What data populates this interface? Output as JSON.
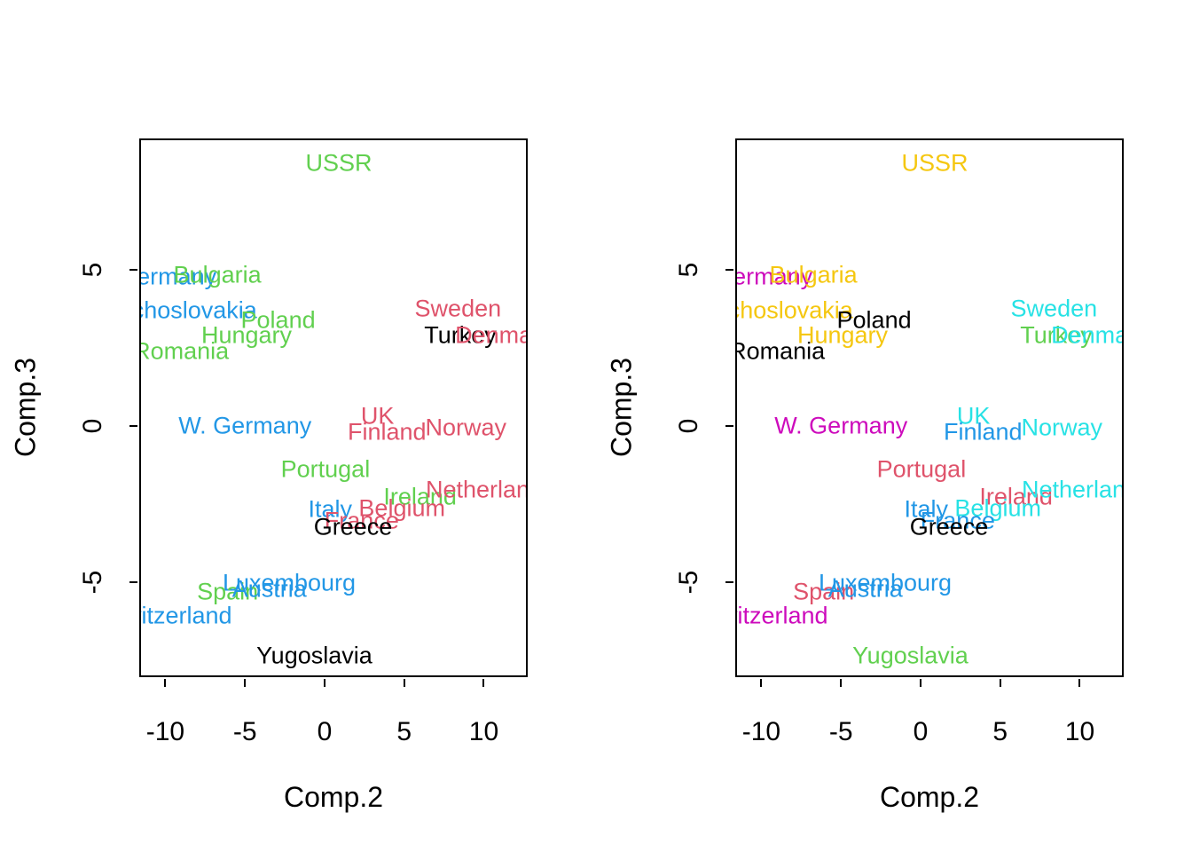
{
  "figure": {
    "background": "#ffffff",
    "palette": {
      "black": "#000000",
      "red": "#DF536B",
      "green": "#61D04F",
      "blue": "#2297E6",
      "cyan": "#28E2E5",
      "magenta": "#CD0BBC",
      "yellow": "#F5C710"
    }
  },
  "chart_data": [
    {
      "type": "scatter",
      "panel": "left",
      "xlabel": "Comp.2",
      "ylabel": "Comp.3",
      "xlim": [
        -11.64,
        12.76
      ],
      "ylim": [
        -8.02,
        9.18
      ],
      "x_ticks": [
        -10,
        -5,
        0,
        5,
        10
      ],
      "y_ticks": [
        -5,
        0,
        5
      ],
      "grid": false,
      "legend": "none",
      "points": [
        {
          "label": "USSR",
          "x": 0.9,
          "y": 8.45,
          "color": "#61D04F"
        },
        {
          "label": "E. Germany",
          "x": -10.9,
          "y": 4.8,
          "color": "#2297E6"
        },
        {
          "label": "Bulgaria",
          "x": -6.8,
          "y": 4.85,
          "color": "#61D04F"
        },
        {
          "label": "Czechoslovakia",
          "x": -9.6,
          "y": 3.7,
          "color": "#2297E6"
        },
        {
          "label": "Poland",
          "x": -2.95,
          "y": 3.4,
          "color": "#61D04F"
        },
        {
          "label": "Hungary",
          "x": -4.95,
          "y": 2.9,
          "color": "#61D04F"
        },
        {
          "label": "Romania",
          "x": -9.1,
          "y": 2.4,
          "color": "#61D04F"
        },
        {
          "label": "Sweden",
          "x": 8.45,
          "y": 3.75,
          "color": "#DF536B"
        },
        {
          "label": "Turkey",
          "x": 8.6,
          "y": 2.9,
          "color": "#000000"
        },
        {
          "label": "Denmark",
          "x": 11.35,
          "y": 2.9,
          "color": "#DF536B"
        },
        {
          "label": "W. Germany",
          "x": -5.05,
          "y": 0.0,
          "color": "#2297E6"
        },
        {
          "label": "UK",
          "x": 3.35,
          "y": 0.3,
          "color": "#DF536B"
        },
        {
          "label": "Finland",
          "x": 3.95,
          "y": -0.2,
          "color": "#DF536B"
        },
        {
          "label": "Norway",
          "x": 8.95,
          "y": -0.05,
          "color": "#DF536B"
        },
        {
          "label": "Portugal",
          "x": 0.05,
          "y": -1.4,
          "color": "#61D04F"
        },
        {
          "label": "Ireland",
          "x": 6.05,
          "y": -2.3,
          "color": "#61D04F"
        },
        {
          "label": "Netherlands",
          "x": 10.5,
          "y": -2.05,
          "color": "#DF536B"
        },
        {
          "label": "Italy",
          "x": 0.35,
          "y": -2.7,
          "color": "#2297E6"
        },
        {
          "label": "Belgium",
          "x": 4.9,
          "y": -2.65,
          "color": "#DF536B"
        },
        {
          "label": "France",
          "x": 2.35,
          "y": -3.05,
          "color": "#DF536B"
        },
        {
          "label": "Greece",
          "x": 1.8,
          "y": -3.25,
          "color": "#000000"
        },
        {
          "label": "Luxembourg",
          "x": -2.25,
          "y": -5.05,
          "color": "#2297E6"
        },
        {
          "label": "Spain",
          "x": -6.15,
          "y": -5.35,
          "color": "#61D04F"
        },
        {
          "label": "Austria",
          "x": -3.5,
          "y": -5.25,
          "color": "#2297E6"
        },
        {
          "label": "Switzerland",
          "x": -9.8,
          "y": -6.1,
          "color": "#2297E6"
        },
        {
          "label": "Yugoslavia",
          "x": -0.65,
          "y": -7.4,
          "color": "#000000"
        }
      ]
    },
    {
      "type": "scatter",
      "panel": "right",
      "xlabel": "Comp.2",
      "ylabel": "Comp.3",
      "xlim": [
        -11.64,
        12.76
      ],
      "ylim": [
        -8.02,
        9.18
      ],
      "x_ticks": [
        -10,
        -5,
        0,
        5,
        10
      ],
      "y_ticks": [
        -5,
        0,
        5
      ],
      "grid": false,
      "legend": "none",
      "points": [
        {
          "label": "USSR",
          "x": 0.9,
          "y": 8.45,
          "color": "#F5C710"
        },
        {
          "label": "E. Germany",
          "x": -10.9,
          "y": 4.8,
          "color": "#CD0BBC"
        },
        {
          "label": "Bulgaria",
          "x": -6.8,
          "y": 4.85,
          "color": "#F5C710"
        },
        {
          "label": "Czechoslovakia",
          "x": -9.6,
          "y": 3.7,
          "color": "#F5C710"
        },
        {
          "label": "Poland",
          "x": -2.95,
          "y": 3.4,
          "color": "#000000"
        },
        {
          "label": "Hungary",
          "x": -4.95,
          "y": 2.9,
          "color": "#F5C710"
        },
        {
          "label": "Romania",
          "x": -9.1,
          "y": 2.4,
          "color": "#000000"
        },
        {
          "label": "Sweden",
          "x": 8.45,
          "y": 3.75,
          "color": "#28E2E5"
        },
        {
          "label": "Turkey",
          "x": 8.6,
          "y": 2.9,
          "color": "#61D04F"
        },
        {
          "label": "Denmark",
          "x": 11.35,
          "y": 2.9,
          "color": "#28E2E5"
        },
        {
          "label": "W. Germany",
          "x": -5.05,
          "y": 0.0,
          "color": "#CD0BBC"
        },
        {
          "label": "UK",
          "x": 3.35,
          "y": 0.3,
          "color": "#28E2E5"
        },
        {
          "label": "Finland",
          "x": 3.95,
          "y": -0.2,
          "color": "#2297E6"
        },
        {
          "label": "Norway",
          "x": 8.95,
          "y": -0.05,
          "color": "#28E2E5"
        },
        {
          "label": "Portugal",
          "x": 0.05,
          "y": -1.4,
          "color": "#DF536B"
        },
        {
          "label": "Ireland",
          "x": 6.05,
          "y": -2.3,
          "color": "#DF536B"
        },
        {
          "label": "Netherlands",
          "x": 10.5,
          "y": -2.05,
          "color": "#28E2E5"
        },
        {
          "label": "Italy",
          "x": 0.35,
          "y": -2.7,
          "color": "#2297E6"
        },
        {
          "label": "Belgium",
          "x": 4.9,
          "y": -2.65,
          "color": "#28E2E5"
        },
        {
          "label": "France",
          "x": 2.35,
          "y": -3.05,
          "color": "#2297E6"
        },
        {
          "label": "Greece",
          "x": 1.8,
          "y": -3.25,
          "color": "#000000"
        },
        {
          "label": "Luxembourg",
          "x": -2.25,
          "y": -5.05,
          "color": "#2297E6"
        },
        {
          "label": "Spain",
          "x": -6.15,
          "y": -5.35,
          "color": "#DF536B"
        },
        {
          "label": "Austria",
          "x": -3.5,
          "y": -5.25,
          "color": "#2297E6"
        },
        {
          "label": "Switzerland",
          "x": -9.8,
          "y": -6.1,
          "color": "#CD0BBC"
        },
        {
          "label": "Yugoslavia",
          "x": -0.65,
          "y": -7.4,
          "color": "#61D04F"
        }
      ]
    }
  ]
}
